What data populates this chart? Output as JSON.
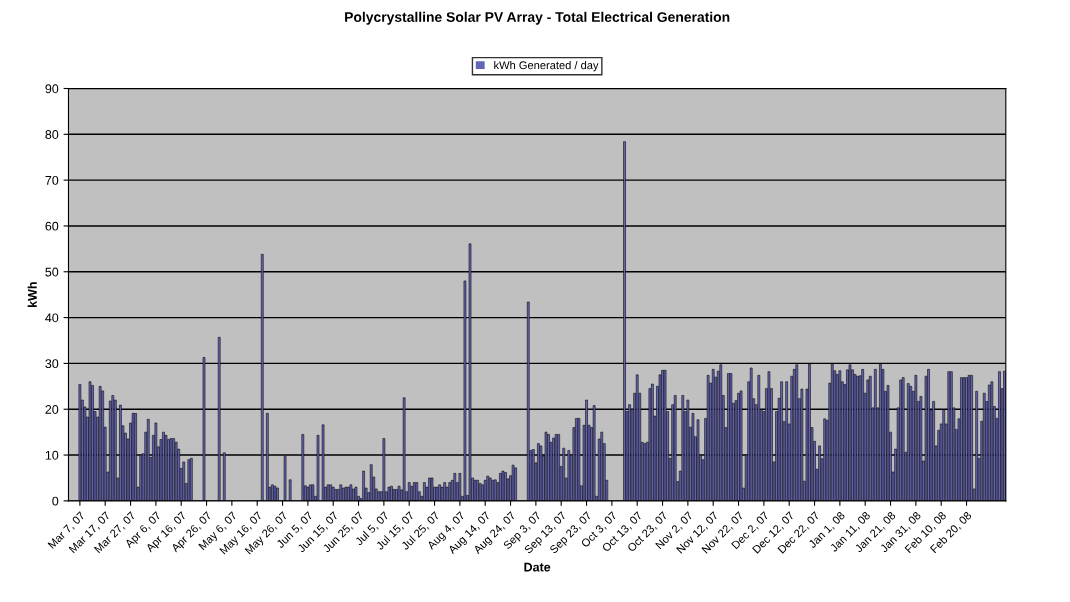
{
  "chart_data": {
    "type": "bar",
    "title": "Polycrystalline Solar PV Array - Total Electrical Generation",
    "xlabel": "Date",
    "ylabel": "kWh",
    "categories": [
      null,
      null,
      null,
      null,
      "Mar 7, 07",
      null,
      null,
      null,
      null,
      null,
      null,
      null,
      null,
      null,
      "Mar 17, 07",
      null,
      null,
      null,
      null,
      null,
      null,
      null,
      null,
      null,
      "Mar 27, 07",
      null,
      null,
      null,
      null,
      null,
      null,
      null,
      null,
      null,
      "Apr 6, 07",
      null,
      null,
      null,
      null,
      null,
      null,
      null,
      null,
      null,
      "Apr 16, 07",
      null,
      null,
      null,
      null,
      null,
      null,
      null,
      null,
      null,
      "Apr 26, 07",
      null,
      null,
      null,
      null,
      null,
      null,
      null,
      null,
      null,
      "May 6, 07",
      null,
      null,
      null,
      null,
      null,
      null,
      null,
      null,
      null,
      "May 16, 07",
      null,
      null,
      null,
      null,
      null,
      null,
      null,
      null,
      null,
      "May 26, 07",
      null,
      null,
      null,
      null,
      null,
      null,
      null,
      null,
      null,
      "Jun 5, 07",
      null,
      null,
      null,
      null,
      null,
      null,
      null,
      null,
      null,
      "Jun 15, 07",
      null,
      null,
      null,
      null,
      null,
      null,
      null,
      null,
      null,
      "Jun 25, 07",
      null,
      null,
      null,
      null,
      null,
      null,
      null,
      null,
      null,
      "Jul 5, 07",
      null,
      null,
      null,
      null,
      null,
      null,
      null,
      null,
      null,
      "Jul 15, 07",
      null,
      null,
      null,
      null,
      null,
      null,
      null,
      null,
      null,
      "Jul 25, 07",
      null,
      null,
      null,
      null,
      null,
      null,
      null,
      null,
      null,
      "Aug 4, 07",
      null,
      null,
      null,
      null,
      null,
      null,
      null,
      null,
      null,
      "Aug 14, 07",
      null,
      null,
      null,
      null,
      null,
      null,
      null,
      null,
      null,
      "Aug 24, 07",
      null,
      null,
      null,
      null,
      null,
      null,
      null,
      null,
      null,
      "Sep 3, 07",
      null,
      null,
      null,
      null,
      null,
      null,
      null,
      null,
      null,
      "Sep 13, 07",
      null,
      null,
      null,
      null,
      null,
      null,
      null,
      null,
      null,
      "Sep 23, 07",
      null,
      null,
      null,
      null,
      null,
      null,
      null,
      null,
      null,
      "Oct 3, 07",
      null,
      null,
      null,
      null,
      null,
      null,
      null,
      null,
      null,
      "Oct 13, 07",
      null,
      null,
      null,
      null,
      null,
      null,
      null,
      null,
      null,
      "Oct 23, 07",
      null,
      null,
      null,
      null,
      null,
      null,
      null,
      null,
      null,
      "Nov 2, 07",
      null,
      null,
      null,
      null,
      null,
      null,
      null,
      null,
      null,
      "Nov 12, 07",
      null,
      null,
      null,
      null,
      null,
      null,
      null,
      null,
      null,
      "Nov 22, 07",
      null,
      null,
      null,
      null,
      null,
      null,
      null,
      null,
      null,
      "Dec 2, 07",
      null,
      null,
      null,
      null,
      null,
      null,
      null,
      null,
      null,
      "Dec 12, 07",
      null,
      null,
      null,
      null,
      null,
      null,
      null,
      null,
      null,
      "Dec 22, 07",
      null,
      null,
      null,
      null,
      null,
      null,
      null,
      null,
      null,
      "Jan 1, 08",
      null,
      null,
      null,
      null,
      null,
      null,
      null,
      null,
      null,
      "Jan 11, 08",
      null,
      null,
      null,
      null,
      null,
      null,
      null,
      null,
      null,
      "Jan 21, 08",
      null,
      null,
      null,
      null,
      null,
      null,
      null,
      null,
      null,
      "Jan 31, 08",
      null,
      null,
      null,
      null,
      null,
      null,
      null,
      null,
      null,
      "Feb 10, 08",
      null,
      null,
      null,
      null,
      null,
      null,
      null,
      null,
      null,
      "Feb 20, 08",
      null,
      null,
      null,
      null,
      null,
      null,
      null,
      null,
      null,
      null,
      null,
      null,
      null,
      null,
      null
    ],
    "series": [
      {
        "name": "kWh Generated / day",
        "color": "#6464b4",
        "values": [
          0,
          0,
          0,
          0,
          25.4,
          22,
          20.5,
          18.3,
          26,
          25.2,
          19.5,
          18.3,
          25,
          24,
          16.1,
          6.3,
          21.8,
          23,
          22,
          5,
          20.9,
          16.4,
          14.8,
          13.5,
          17,
          19.1,
          19.1,
          3,
          9.7,
          10.3,
          15,
          17.8,
          9.5,
          14.3,
          17,
          11.8,
          13.4,
          15,
          14.3,
          13.4,
          13.6,
          13.6,
          12.8,
          11.3,
          7.1,
          8.5,
          3.8,
          9,
          9.3,
          0,
          0,
          0,
          0,
          31.3,
          0,
          0,
          0,
          0,
          0,
          35.7,
          0,
          10.5,
          0,
          0,
          0,
          0,
          0,
          0,
          0,
          0,
          0,
          0,
          0,
          0,
          0,
          0,
          53.8,
          0,
          19.1,
          3,
          3.5,
          3.2,
          2.8,
          0,
          0,
          9.7,
          0,
          4.6,
          0,
          0,
          0,
          0,
          14.5,
          3.3,
          3,
          3.5,
          3.5,
          1,
          14.3,
          0,
          16.6,
          3,
          3.5,
          3.5,
          3,
          2.5,
          2.5,
          3.5,
          2.8,
          3,
          3,
          3.5,
          2.6,
          3,
          1,
          0.5,
          6.5,
          2.8,
          1.8,
          7.9,
          5.2,
          2.6,
          2,
          2,
          13.6,
          2,
          3,
          3.2,
          2.5,
          2.5,
          3.2,
          2.4,
          22.5,
          2,
          4,
          3.2,
          4,
          4,
          2,
          1,
          4,
          3,
          5,
          5,
          3,
          3,
          3.5,
          3,
          4,
          3,
          4,
          4.5,
          6,
          4,
          6,
          1,
          48,
          1.2,
          56.1,
          5,
          4.5,
          4.5,
          3.8,
          3.5,
          4.5,
          5.4,
          5,
          4.5,
          4.6,
          4,
          6,
          6.5,
          6.2,
          4.8,
          5.5,
          7.8,
          7.2,
          0,
          0,
          0,
          0,
          43.4,
          11,
          11.2,
          8.3,
          12.5,
          12,
          9.8,
          15,
          14.5,
          12.8,
          13.7,
          14.5,
          14.5,
          7.5,
          11.5,
          5,
          11,
          10,
          16,
          18,
          18,
          3.3,
          16.5,
          22,
          16.5,
          16,
          20.8,
          1,
          13.5,
          15,
          12.5,
          4.5,
          0,
          0,
          0,
          0,
          0,
          0,
          78.4,
          19.5,
          21,
          20,
          23.5,
          27.5,
          23.5,
          12.8,
          12.5,
          12.8,
          24.5,
          25.5,
          18.5,
          25,
          27.5,
          28.5,
          28.5,
          19.5,
          9.3,
          21,
          23,
          4.2,
          6.5,
          23,
          19.5,
          22,
          16.1,
          19.1,
          14,
          17.7,
          10,
          9,
          18,
          27.4,
          25.7,
          28.7,
          27,
          28.3,
          29.7,
          23,
          16,
          27.8,
          27.8,
          21.3,
          21.9,
          23.5,
          24,
          2.8,
          10,
          26,
          29,
          22.3,
          21,
          27.4,
          19.9,
          19.5,
          24.5,
          28.2,
          24.5,
          8.5,
          19.5,
          22.4,
          26,
          17.3,
          26,
          16.8,
          27.2,
          28.7,
          29.7,
          22.3,
          24.4,
          4.3,
          24.4,
          29.8,
          16,
          13,
          6.9,
          12,
          9.2,
          17.9,
          17.6,
          25.7,
          29.8,
          28.4,
          27.6,
          28.4,
          26,
          25.4,
          28.6,
          29.7,
          28.6,
          27.6,
          27.2,
          27.3,
          28.7,
          23.5,
          26.4,
          27.2,
          20.3,
          28.7,
          20.3,
          29.8,
          28.7,
          23.9,
          25.2,
          15,
          6.3,
          11.3,
          20.3,
          26.4,
          26.9,
          10.6,
          25.6,
          25,
          23.9,
          27.4,
          21.7,
          22.8,
          8.7,
          27.2,
          28.7,
          19.8,
          21.7,
          12,
          15.4,
          16.8,
          19.9,
          16.8,
          28.2,
          28.2,
          20.3,
          15.6,
          17.9,
          26.9,
          26.9,
          26.9,
          27.4,
          27.4,
          2.6,
          23.9,
          9.3,
          17.4,
          23.5,
          21.7,
          25.3,
          26,
          20.6,
          18,
          28.2,
          24.5,
          28.3
        ]
      }
    ],
    "ylim": [
      0,
      90
    ],
    "yticks": [
      0,
      10,
      20,
      30,
      40,
      50,
      60,
      70,
      80,
      90
    ],
    "grid": "y",
    "legend": "top"
  }
}
